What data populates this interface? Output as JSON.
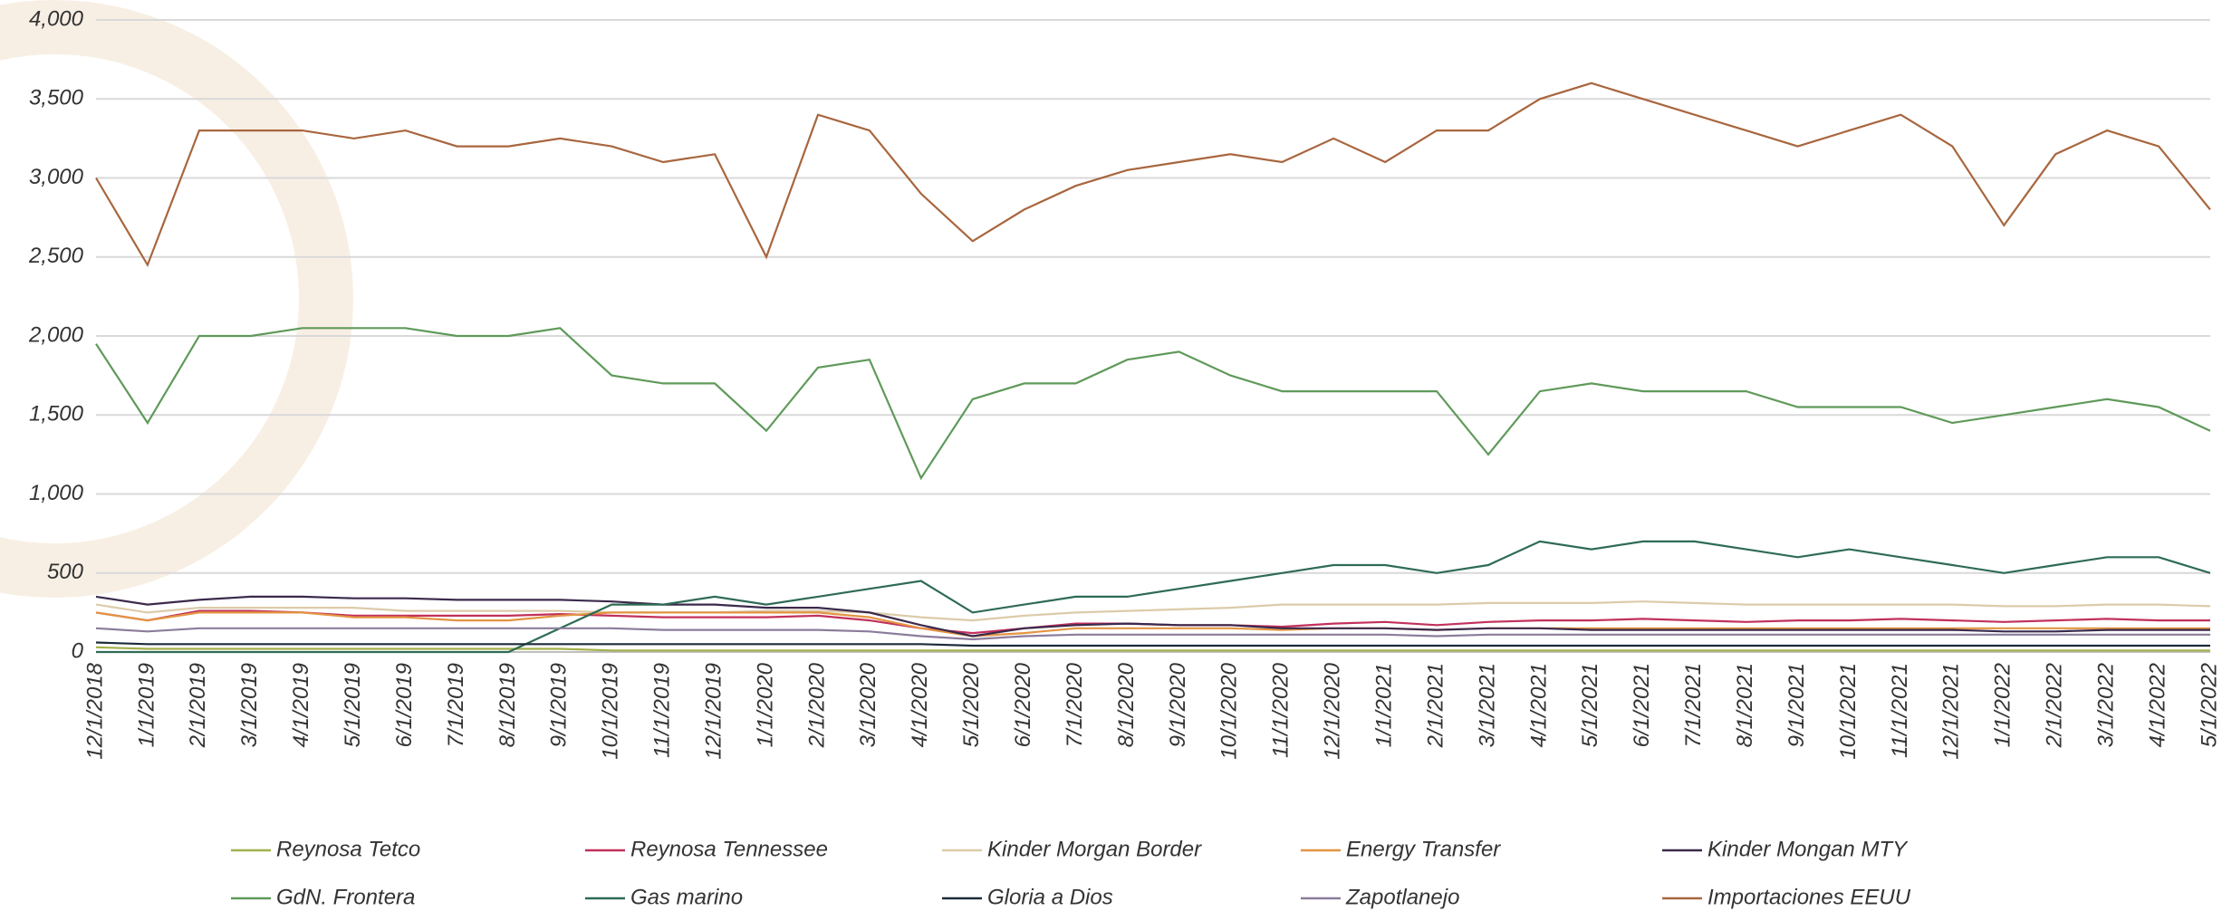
{
  "chart_data": {
    "type": "line",
    "categories": [
      "12/1/2018",
      "1/1/2019",
      "2/1/2019",
      "3/1/2019",
      "4/1/2019",
      "5/1/2019",
      "6/1/2019",
      "7/1/2019",
      "8/1/2019",
      "9/1/2019",
      "10/1/2019",
      "11/1/2019",
      "12/1/2019",
      "1/1/2020",
      "2/1/2020",
      "3/1/2020",
      "4/1/2020",
      "5/1/2020",
      "6/1/2020",
      "7/1/2020",
      "8/1/2020",
      "9/1/2020",
      "10/1/2020",
      "11/1/2020",
      "12/1/2020",
      "1/1/2021",
      "2/1/2021",
      "3/1/2021",
      "4/1/2021",
      "5/1/2021",
      "6/1/2021",
      "7/1/2021",
      "8/1/2021",
      "9/1/2021",
      "10/1/2021",
      "11/1/2021",
      "12/1/2021",
      "1/1/2022",
      "2/1/2022",
      "3/1/2022",
      "4/1/2022",
      "5/1/2022"
    ],
    "ylim": [
      0,
      4000
    ],
    "yticks": [
      0,
      500,
      {
        "value": 1000,
        "label": "1,000"
      },
      {
        "value": 1500,
        "label": "1,500"
      },
      {
        "value": 2000,
        "label": "2,000"
      },
      {
        "value": 2500,
        "label": "2,500"
      },
      {
        "value": 3000,
        "label": "3,000"
      },
      {
        "value": 3500,
        "label": "3,500"
      },
      {
        "value": 4000,
        "label": "4,000"
      }
    ],
    "grid": true,
    "legend": "bottom",
    "series": [
      {
        "name": "Reynosa Tetco",
        "color": "#a3b04a",
        "values": [
          30,
          20,
          20,
          20,
          20,
          20,
          20,
          20,
          20,
          20,
          10,
          10,
          10,
          10,
          10,
          10,
          10,
          10,
          10,
          10,
          10,
          10,
          10,
          10,
          10,
          10,
          10,
          10,
          10,
          10,
          10,
          10,
          10,
          10,
          10,
          10,
          10,
          10,
          10,
          10,
          10,
          10
        ]
      },
      {
        "name": "Reynosa Tennessee",
        "color": "#c2305c",
        "values": [
          250,
          200,
          260,
          260,
          250,
          230,
          230,
          230,
          230,
          240,
          230,
          220,
          220,
          220,
          230,
          200,
          150,
          120,
          150,
          180,
          180,
          170,
          170,
          160,
          180,
          190,
          170,
          190,
          200,
          200,
          210,
          200,
          190,
          200,
          200,
          210,
          200,
          190,
          200,
          210,
          200,
          200
        ]
      },
      {
        "name": "Kinder Morgan Border",
        "color": "#dccbaa",
        "values": [
          300,
          250,
          280,
          280,
          280,
          280,
          260,
          260,
          260,
          260,
          250,
          250,
          250,
          260,
          260,
          250,
          220,
          200,
          230,
          250,
          260,
          270,
          280,
          300,
          300,
          300,
          300,
          310,
          310,
          310,
          320,
          310,
          300,
          300,
          300,
          300,
          300,
          290,
          290,
          300,
          300,
          290
        ]
      },
      {
        "name": "Energy Transfer",
        "color": "#e39442",
        "values": [
          250,
          200,
          250,
          250,
          250,
          220,
          220,
          200,
          200,
          230,
          250,
          250,
          250,
          250,
          250,
          220,
          150,
          100,
          120,
          150,
          150,
          150,
          150,
          140,
          150,
          150,
          140,
          150,
          150,
          150,
          150,
          150,
          150,
          150,
          150,
          150,
          150,
          150,
          150,
          150,
          150,
          150
        ]
      },
      {
        "name": "Kinder Mongan MTY",
        "color": "#3b2a4c",
        "values": [
          350,
          300,
          330,
          350,
          350,
          340,
          340,
          330,
          330,
          330,
          320,
          300,
          300,
          280,
          280,
          250,
          170,
          100,
          150,
          170,
          180,
          170,
          170,
          150,
          150,
          150,
          140,
          150,
          150,
          140,
          140,
          140,
          140,
          140,
          140,
          140,
          140,
          130,
          130,
          140,
          140,
          140
        ]
      },
      {
        "name": "GdN. Frontera",
        "color": "#5f9a5a",
        "values": [
          1950,
          1450,
          2000,
          2000,
          2050,
          2050,
          2050,
          2000,
          2000,
          2050,
          1750,
          1700,
          1700,
          1400,
          1800,
          1850,
          1100,
          1600,
          1700,
          1700,
          1850,
          1900,
          1750,
          1650,
          1650,
          1650,
          1650,
          1250,
          1650,
          1700,
          1650,
          1650,
          1650,
          1550,
          1550,
          1550,
          1450,
          1500,
          1550,
          1600,
          1550,
          1400
        ]
      },
      {
        "name": "Gas marino",
        "color": "#2e6b55",
        "values": [
          0,
          0,
          0,
          0,
          0,
          0,
          0,
          0,
          0,
          150,
          300,
          300,
          350,
          300,
          350,
          400,
          450,
          250,
          300,
          350,
          350,
          400,
          450,
          500,
          550,
          550,
          500,
          550,
          700,
          650,
          700,
          700,
          650,
          600,
          650,
          600,
          550,
          500,
          550,
          600,
          600,
          500
        ]
      },
      {
        "name": "Gloria a Dios",
        "color": "#1c2b3a",
        "values": [
          60,
          50,
          50,
          50,
          50,
          50,
          50,
          50,
          50,
          50,
          50,
          50,
          50,
          50,
          50,
          50,
          50,
          40,
          40,
          40,
          40,
          40,
          40,
          40,
          40,
          40,
          40,
          40,
          40,
          40,
          40,
          40,
          40,
          40,
          40,
          40,
          40,
          40,
          40,
          40,
          40,
          40
        ]
      },
      {
        "name": "Zapotlanejo",
        "color": "#8c7c9c",
        "values": [
          150,
          130,
          150,
          150,
          150,
          150,
          150,
          150,
          150,
          150,
          150,
          140,
          140,
          140,
          140,
          130,
          100,
          80,
          100,
          110,
          110,
          110,
          110,
          110,
          110,
          110,
          100,
          110,
          110,
          110,
          110,
          110,
          110,
          110,
          110,
          110,
          110,
          110,
          110,
          110,
          110,
          110
        ]
      },
      {
        "name": "Importaciones EEUU",
        "color": "#a8663e",
        "values": [
          3000,
          2450,
          3300,
          3300,
          3300,
          3250,
          3300,
          3200,
          3200,
          3250,
          3200,
          3100,
          3150,
          2500,
          3400,
          3300,
          2900,
          2600,
          2800,
          2950,
          3050,
          3100,
          3150,
          3100,
          3250,
          3100,
          3300,
          3300,
          3500,
          3600,
          3500,
          3400,
          3300,
          3200,
          3300,
          3400,
          3200,
          2700,
          3150,
          3300,
          3200,
          2800
        ]
      }
    ]
  }
}
